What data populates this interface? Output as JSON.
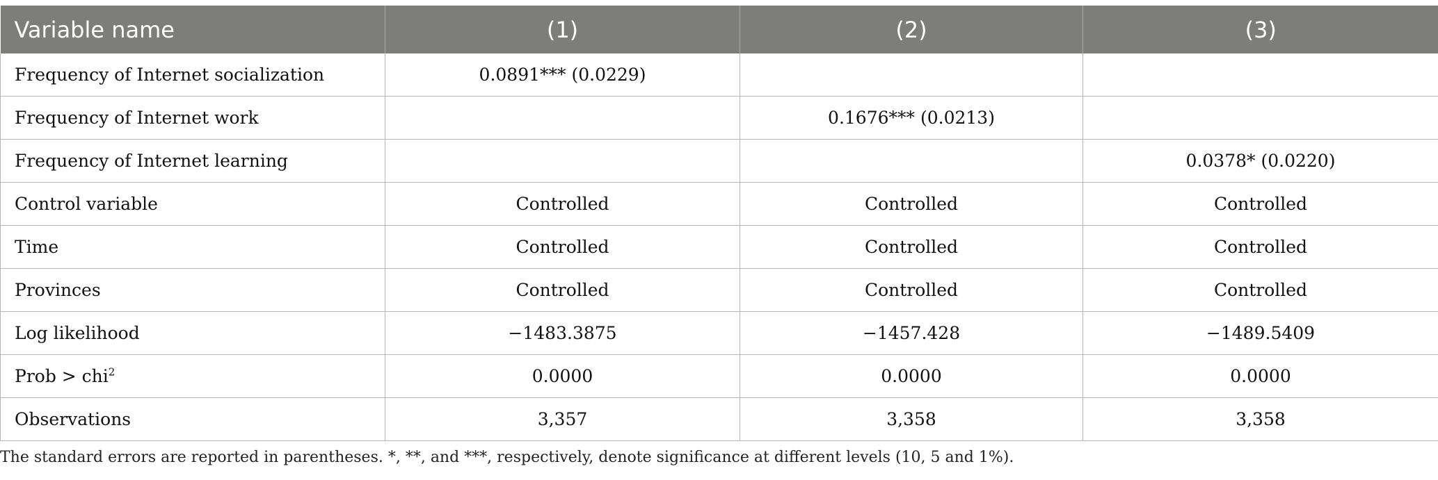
{
  "table": {
    "headers": [
      "Variable name",
      "(1)",
      "(2)",
      "(3)"
    ],
    "rows": [
      {
        "label": "Frequency of Internet socialization",
        "label_sup": "",
        "cells": [
          "0.0891*** (0.0229)",
          "",
          ""
        ]
      },
      {
        "label": "Frequency of Internet work",
        "label_sup": "",
        "cells": [
          "",
          "0.1676*** (0.0213)",
          ""
        ]
      },
      {
        "label": "Frequency of Internet learning",
        "label_sup": "",
        "cells": [
          "",
          "",
          "0.0378* (0.0220)"
        ]
      },
      {
        "label": "Control variable",
        "label_sup": "",
        "cells": [
          "Controlled",
          "Controlled",
          "Controlled"
        ]
      },
      {
        "label": "Time",
        "label_sup": "",
        "cells": [
          "Controlled",
          "Controlled",
          "Controlled"
        ]
      },
      {
        "label": "Provinces",
        "label_sup": "",
        "cells": [
          "Controlled",
          "Controlled",
          "Controlled"
        ]
      },
      {
        "label": "Log likelihood",
        "label_sup": "",
        "cells": [
          "−1483.3875",
          "−1457.428",
          "−1489.5409"
        ]
      },
      {
        "label": "Prob > chi",
        "label_sup": "2",
        "cells": [
          "0.0000",
          "0.0000",
          "0.0000"
        ]
      },
      {
        "label": "Observations",
        "label_sup": "",
        "cells": [
          "3,357",
          "3,358",
          "3,358"
        ]
      }
    ]
  },
  "footnote": "The standard errors are reported in parentheses. *, **, and ***, respectively, denote significance at different levels (10, 5 and 1%).",
  "colors": {
    "header_bg": "#7d7d7b",
    "header_text": "#ffffff",
    "grid": "#b5b5b5"
  }
}
